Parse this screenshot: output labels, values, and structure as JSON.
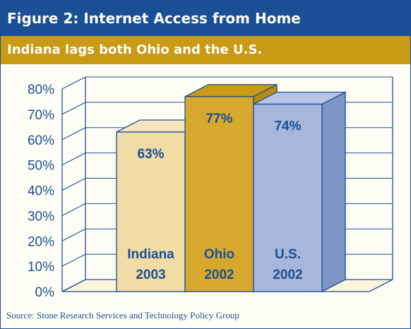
{
  "figure": {
    "title": "Figure 2: Internet Access from Home",
    "subtitle": "Indiana lags both Ohio and the U.S.",
    "source": "Source: Stone Research Services and Technology Policy Group"
  },
  "chart_data": {
    "type": "bar",
    "title": "Figure 2: Internet Access from Home",
    "subtitle": "Indiana lags both Ohio and the U.S.",
    "categories": [
      "Indiana 2003",
      "Ohio 2002",
      "U.S. 2002"
    ],
    "category_lines": [
      [
        "Indiana",
        "2003"
      ],
      [
        "Ohio",
        "2002"
      ],
      [
        "U.S.",
        "2002"
      ]
    ],
    "values": [
      63,
      77,
      74
    ],
    "value_labels": [
      "63%",
      "77%",
      "74%"
    ],
    "unit": "%",
    "ylim": [
      0,
      80
    ],
    "yticks": [
      0,
      10,
      20,
      30,
      40,
      50,
      60,
      70,
      80
    ],
    "ytick_labels": [
      "0%",
      "10%",
      "20%",
      "30%",
      "40%",
      "50%",
      "60%",
      "70%",
      "80%"
    ],
    "grid": true,
    "three_d": true,
    "colors": {
      "front": [
        "#f2dca6",
        "#d7a82e",
        "#a7b6dc"
      ],
      "top": [
        "#f7e6bd",
        "#c99a14",
        "#b8c5e6"
      ],
      "side": [
        "#e6c987",
        "#b88a10",
        "#8094c6"
      ],
      "label": "#1a4f96",
      "axis": "#1a4f96",
      "floor": "#fdf5dc"
    }
  }
}
